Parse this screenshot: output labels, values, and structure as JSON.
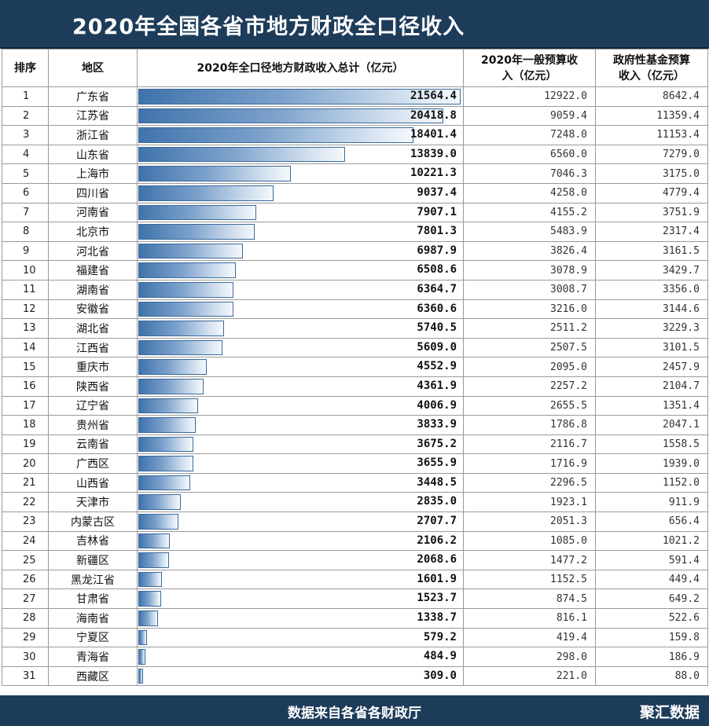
{
  "header": {
    "title": "2020年全国各省市地方财政全口径收入"
  },
  "columns": {
    "rank": "排序",
    "region": "地区",
    "total": "2020年全口径地方财政收入总计（亿元）",
    "general_line1": "2020年一般预算收",
    "general_line2": "入（亿元）",
    "fund_line1": "政府性基金预算",
    "fund_line2": "收入（亿元）"
  },
  "footer": {
    "source": "数据来自各省各财政厅",
    "brand": "聚汇数据"
  },
  "colors": {
    "header_bg": "#1d3c5a",
    "bar": "#3f73ab"
  },
  "chart_data": {
    "type": "table",
    "title": "2020年全国各省市地方财政全口径收入",
    "bar_max": 21564.4,
    "rows": [
      {
        "rank": "1",
        "region": "广东省",
        "total": "21564.4",
        "general": "12922.0",
        "fund": "8642.4"
      },
      {
        "rank": "2",
        "region": "江苏省",
        "total": "20418.8",
        "general": "9059.4",
        "fund": "11359.4"
      },
      {
        "rank": "3",
        "region": "浙江省",
        "total": "18401.4",
        "general": "7248.0",
        "fund": "11153.4"
      },
      {
        "rank": "4",
        "region": "山东省",
        "total": "13839.0",
        "general": "6560.0",
        "fund": "7279.0"
      },
      {
        "rank": "5",
        "region": "上海市",
        "total": "10221.3",
        "general": "7046.3",
        "fund": "3175.0"
      },
      {
        "rank": "6",
        "region": "四川省",
        "total": "9037.4",
        "general": "4258.0",
        "fund": "4779.4"
      },
      {
        "rank": "7",
        "region": "河南省",
        "total": "7907.1",
        "general": "4155.2",
        "fund": "3751.9"
      },
      {
        "rank": "8",
        "region": "北京市",
        "total": "7801.3",
        "general": "5483.9",
        "fund": "2317.4"
      },
      {
        "rank": "9",
        "region": "河北省",
        "total": "6987.9",
        "general": "3826.4",
        "fund": "3161.5"
      },
      {
        "rank": "10",
        "region": "福建省",
        "total": "6508.6",
        "general": "3078.9",
        "fund": "3429.7"
      },
      {
        "rank": "11",
        "region": "湖南省",
        "total": "6364.7",
        "general": "3008.7",
        "fund": "3356.0"
      },
      {
        "rank": "12",
        "region": "安徽省",
        "total": "6360.6",
        "general": "3216.0",
        "fund": "3144.6"
      },
      {
        "rank": "13",
        "region": "湖北省",
        "total": "5740.5",
        "general": "2511.2",
        "fund": "3229.3"
      },
      {
        "rank": "14",
        "region": "江西省",
        "total": "5609.0",
        "general": "2507.5",
        "fund": "3101.5"
      },
      {
        "rank": "15",
        "region": "重庆市",
        "total": "4552.9",
        "general": "2095.0",
        "fund": "2457.9"
      },
      {
        "rank": "16",
        "region": "陕西省",
        "total": "4361.9",
        "general": "2257.2",
        "fund": "2104.7"
      },
      {
        "rank": "17",
        "region": "辽宁省",
        "total": "4006.9",
        "general": "2655.5",
        "fund": "1351.4"
      },
      {
        "rank": "18",
        "region": "贵州省",
        "total": "3833.9",
        "general": "1786.8",
        "fund": "2047.1"
      },
      {
        "rank": "19",
        "region": "云南省",
        "total": "3675.2",
        "general": "2116.7",
        "fund": "1558.5"
      },
      {
        "rank": "20",
        "region": "广西区",
        "total": "3655.9",
        "general": "1716.9",
        "fund": "1939.0"
      },
      {
        "rank": "21",
        "region": "山西省",
        "total": "3448.5",
        "general": "2296.5",
        "fund": "1152.0"
      },
      {
        "rank": "22",
        "region": "天津市",
        "total": "2835.0",
        "general": "1923.1",
        "fund": "911.9"
      },
      {
        "rank": "23",
        "region": "内蒙古区",
        "total": "2707.7",
        "general": "2051.3",
        "fund": "656.4"
      },
      {
        "rank": "24",
        "region": "吉林省",
        "total": "2106.2",
        "general": "1085.0",
        "fund": "1021.2"
      },
      {
        "rank": "25",
        "region": "新疆区",
        "total": "2068.6",
        "general": "1477.2",
        "fund": "591.4"
      },
      {
        "rank": "26",
        "region": "黑龙江省",
        "total": "1601.9",
        "general": "1152.5",
        "fund": "449.4"
      },
      {
        "rank": "27",
        "region": "甘肃省",
        "total": "1523.7",
        "general": "874.5",
        "fund": "649.2"
      },
      {
        "rank": "28",
        "region": "海南省",
        "total": "1338.7",
        "general": "816.1",
        "fund": "522.6"
      },
      {
        "rank": "29",
        "region": "宁夏区",
        "total": "579.2",
        "general": "419.4",
        "fund": "159.8"
      },
      {
        "rank": "30",
        "region": "青海省",
        "total": "484.9",
        "general": "298.0",
        "fund": "186.9"
      },
      {
        "rank": "31",
        "region": "西藏区",
        "total": "309.0",
        "general": "221.0",
        "fund": "88.0"
      }
    ]
  }
}
